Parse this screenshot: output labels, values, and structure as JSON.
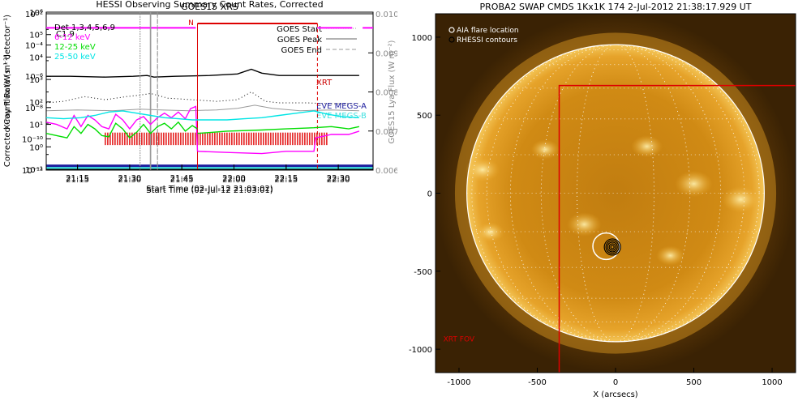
{
  "chart_data": [
    {
      "type": "line",
      "title": "GOES15 XRS",
      "xlabel": "Start Time (02-Jul-12 21:03:01)",
      "ylabel": "X-ray Flux (W m⁻²)",
      "ylabel_right": "GOES15 Lya Flux (W m⁻²)",
      "annotation": "C1.9",
      "x_range_min": [
        3,
        38
      ],
      "x_ticks_min": [
        12,
        27,
        42,
        57,
        72,
        87
      ],
      "x_tick_labels": [
        "21:15",
        "21:30",
        "21:45",
        "22:00",
        "22:15",
        "22:30"
      ],
      "ylim_log": [
        -12,
        -2
      ],
      "y_tick_exponents": [
        -12,
        -10,
        -8,
        -6,
        -4,
        -2
      ],
      "y_tick_labels": [
        "10⁻¹²",
        "10⁻¹⁰",
        "10⁻⁸",
        "10⁻⁶",
        "10⁻⁴",
        "10⁻²"
      ],
      "ylim_right": [
        0.006,
        0.01
      ],
      "y_ticks_right": [
        "0.010",
        "0.009",
        "0.008",
        "0.007",
        "0.006"
      ],
      "legend": [
        "GOES Start",
        "GOES Peak",
        "GOES End"
      ],
      "event_lines_min": {
        "start": 30,
        "peak": 33,
        "end": 35
      },
      "series": [
        {
          "name": "GOES 1-8 Å",
          "color": "#000000",
          "x": [
            3,
            10,
            20,
            28,
            32,
            34,
            40,
            50,
            58,
            62,
            65,
            70,
            78,
            85,
            93
          ],
          "log_y": [
            -6.0,
            -6.0,
            -6.05,
            -6.0,
            -5.95,
            -6.05,
            -6.0,
            -5.95,
            -5.85,
            -5.55,
            -5.8,
            -5.95,
            -5.95,
            -5.95,
            -5.95
          ]
        },
        {
          "name": "GOES 0.5-4 Å",
          "color": "#000000",
          "dash": "dotted",
          "x": [
            3,
            8,
            14,
            20,
            26,
            30,
            33,
            38,
            45,
            52,
            58,
            62,
            66,
            70,
            78,
            85,
            93
          ],
          "log_y": [
            -7.7,
            -7.6,
            -7.3,
            -7.5,
            -7.3,
            -7.2,
            -7.1,
            -7.4,
            -7.5,
            -7.6,
            -7.5,
            -7.0,
            -7.6,
            -7.7,
            -7.7,
            -7.75,
            -7.75
          ]
        },
        {
          "name": "GOES15 Lya",
          "color": "#9a9a9a",
          "x": [
            3,
            12,
            22,
            30,
            36,
            44,
            52,
            58,
            63,
            68,
            76,
            85,
            93
          ],
          "log_y": [
            -8.2,
            -8.15,
            -8.2,
            -8.1,
            -8.15,
            -8.2,
            -8.15,
            -8.05,
            -7.85,
            -8.05,
            -8.2,
            -8.15,
            -8.2
          ]
        }
      ],
      "labels": [
        {
          "text": "XRT",
          "color": "#cc0000"
        },
        {
          "text": "EVE MEGS-A",
          "color": "#1c1c9e"
        },
        {
          "text": "EVE MEGS-B",
          "color": "#40e0e0"
        }
      ],
      "xrt_coverage_min": [
        20,
        84
      ],
      "eve_megs_a_log_y": -11.75,
      "eve_megs_b_log_y": -11.85
    },
    {
      "type": "line",
      "title": "HESSI Observing Summary Count Rates, Corrected",
      "xlabel": "Start Time (02-Jul-12 21:03:02)",
      "ylabel": "Corrected Count Rate (s⁻¹ detector⁻¹)",
      "x_range_min": [
        3,
        38
      ],
      "x_ticks_min": [
        12,
        27,
        42,
        57,
        72,
        87
      ],
      "x_tick_labels": [
        "21:15",
        "21:30",
        "21:45",
        "22:00",
        "22:15",
        "22:30"
      ],
      "ylim_log": [
        -1,
        6
      ],
      "y_tick_exponents": [
        -1,
        0,
        1,
        2,
        3,
        4,
        5,
        6
      ],
      "y_tick_labels": [
        "10⁻¹",
        "10⁰",
        "10¹",
        "10²",
        "10³",
        "10⁴",
        "10⁵",
        "10⁶"
      ],
      "legend_entries": [
        {
          "text": "Det 1,3,4,5,6,9",
          "color": "#000000"
        },
        {
          "text": "6-12 keV",
          "color": "#ff00ff"
        },
        {
          "text": "12-25 keV",
          "color": "#00dd00"
        },
        {
          "text": "25-50 keV",
          "color": "#00e5e5"
        }
      ],
      "night_label": "N",
      "night_interval_min": [
        46.5,
        81
      ],
      "event_lines_min": {
        "start": 30,
        "peak": 33,
        "end": 35
      },
      "attenuator_bar_log_y": 5.3,
      "series": [
        {
          "name": "6-12 keV",
          "color": "#ff00ff",
          "x": [
            3,
            6,
            9,
            11,
            13,
            15,
            17,
            19,
            21,
            23,
            25,
            27,
            29,
            31,
            33,
            35,
            37,
            39,
            41,
            43,
            44.5,
            46,
            46.5
          ],
          "log_y": [
            1.1,
            1.0,
            0.8,
            1.4,
            0.9,
            1.4,
            1.2,
            0.9,
            0.8,
            1.45,
            1.2,
            0.8,
            1.2,
            1.35,
            1.0,
            1.3,
            1.5,
            1.3,
            1.55,
            1.25,
            1.7,
            1.8,
            -0.2
          ]
        },
        {
          "name": "6-12 keV (attenuated)",
          "color": "#ff00ff",
          "x": [
            46.5,
            55,
            65,
            72,
            80,
            80.5,
            85,
            90,
            93
          ],
          "log_y": [
            -0.2,
            -0.25,
            -0.3,
            -0.2,
            -0.2,
            0.4,
            0.55,
            0.55,
            0.7
          ]
        },
        {
          "name": "12-25 keV",
          "color": "#00dd00",
          "x": [
            3,
            6,
            9,
            11,
            13,
            15,
            17,
            19,
            21,
            23,
            25,
            27,
            29,
            31,
            33,
            35,
            37,
            39,
            41,
            43,
            45,
            46.5
          ],
          "log_y": [
            0.6,
            0.5,
            0.4,
            0.9,
            0.6,
            1.0,
            0.8,
            0.5,
            0.45,
            1.05,
            0.8,
            0.4,
            0.65,
            1.0,
            0.6,
            0.9,
            1.05,
            0.8,
            1.1,
            0.7,
            0.95,
            0.8
          ]
        },
        {
          "name": "12-25 keV (attenuated)",
          "color": "#00dd00",
          "x": [
            46.5,
            55,
            65,
            72,
            80,
            85,
            90,
            93
          ],
          "log_y": [
            0.6,
            0.7,
            0.75,
            0.8,
            0.85,
            0.9,
            0.8,
            0.9
          ]
        },
        {
          "name": "25-50 keV",
          "color": "#00e5e5",
          "x": [
            3,
            8,
            13,
            17,
            21,
            25,
            29,
            33,
            37,
            41,
            45,
            50,
            55,
            60,
            65,
            70,
            75,
            80,
            84,
            88,
            93
          ],
          "log_y": [
            1.3,
            1.25,
            1.3,
            1.4,
            1.55,
            1.6,
            1.5,
            1.4,
            1.3,
            1.25,
            1.2,
            1.2,
            1.2,
            1.25,
            1.3,
            1.4,
            1.5,
            1.6,
            1.45,
            1.35,
            1.3
          ]
        }
      ]
    },
    {
      "type": "heatmap",
      "title": "PROBA2 SWAP CMDS 1Kx1K 174   2-Jul-2012 21:38:17.929 UT",
      "xlabel": "X (arcsecs)",
      "ylabel": "",
      "xlim": [
        -1150,
        1150
      ],
      "ylim": [
        -1150,
        1150
      ],
      "x_ticks": [
        -1000,
        -500,
        0,
        500,
        1000
      ],
      "y_ticks": [
        1000,
        500,
        0,
        -500,
        -1000
      ],
      "solar_radius_arcsec": 950,
      "legend_entries": [
        "AIA flare location",
        "RHESSI contours"
      ],
      "aia_flare_location": [
        -60,
        -340
      ],
      "aia_circle_radius_arcsec": 85,
      "rhessi_contour_center": [
        -20,
        -345
      ],
      "xrt_fov_label": "XRT FOV",
      "xrt_fov_box": {
        "x_min": -360,
        "x_max": 1160,
        "y_min": -1160,
        "y_max": 690
      },
      "frame_color": "#cc0000"
    }
  ]
}
